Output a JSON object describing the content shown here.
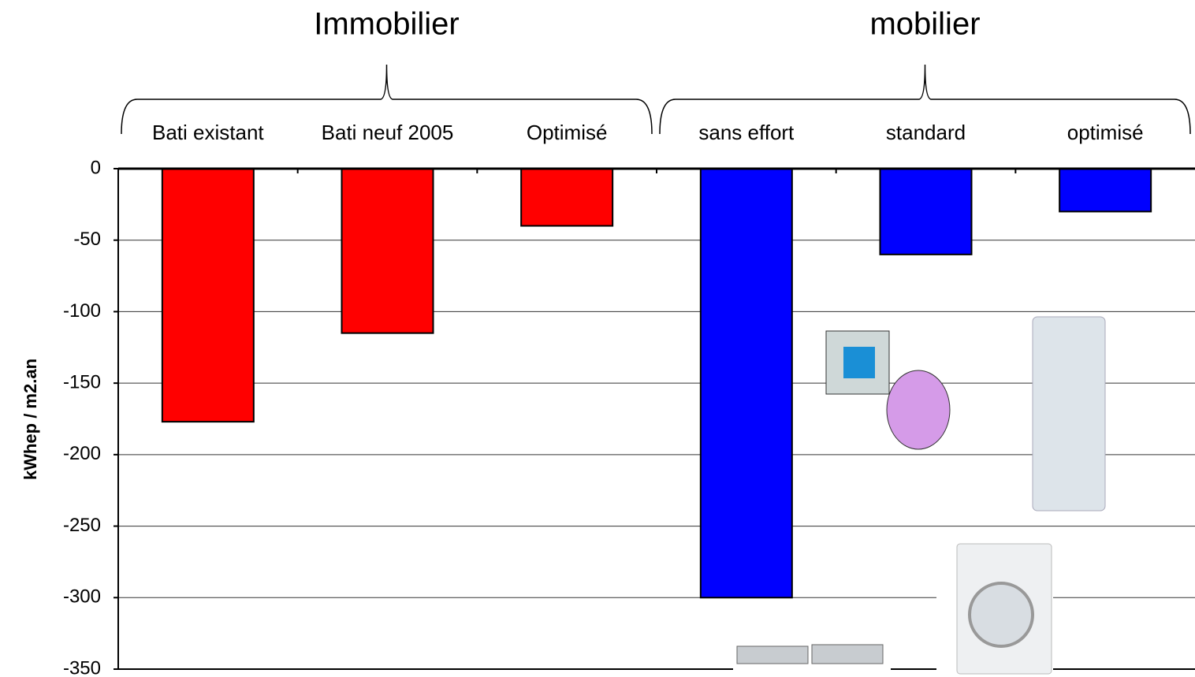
{
  "chart_data": {
    "type": "bar",
    "ylabel": "kWhep  / m2.an",
    "categories": [
      "Bati existant",
      "Bati neuf 2005",
      "Optimisé",
      "sans effort",
      "standard",
      "optimisé"
    ],
    "values": [
      -177,
      -115,
      -40,
      -300,
      -60,
      -30
    ],
    "colors": [
      "#ff0000",
      "#ff0000",
      "#ff0000",
      "#0000ff",
      "#0000ff",
      "#0000ff"
    ],
    "groups": [
      {
        "label": "Immobilier",
        "categories": [
          "Bati existant",
          "Bati neuf 2005",
          "Optimisé"
        ]
      },
      {
        "label": "mobilier",
        "categories": [
          "sans effort",
          "standard",
          "optimisé"
        ]
      }
    ],
    "ylim": [
      -350,
      0
    ],
    "yticks": [
      0,
      -50,
      -100,
      -150,
      -200,
      -250,
      -300,
      -350
    ],
    "grid": true
  }
}
